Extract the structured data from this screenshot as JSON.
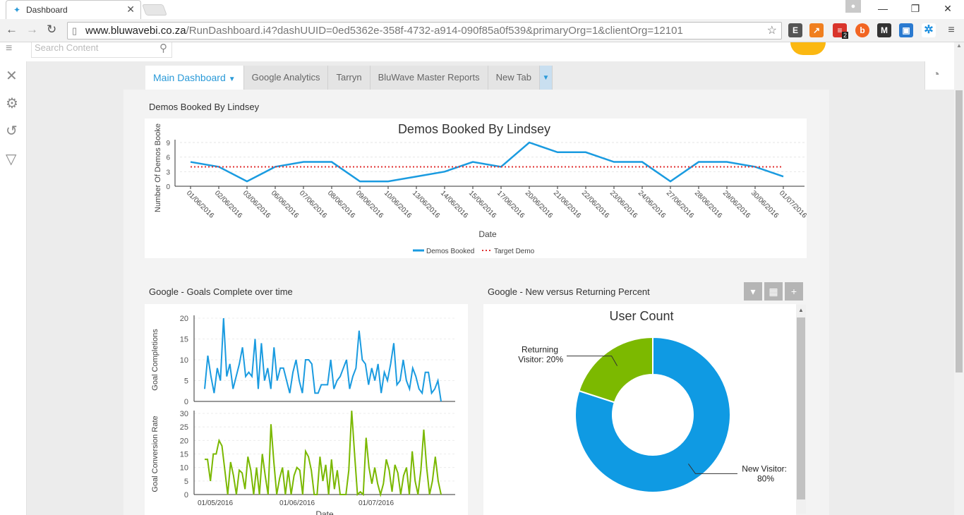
{
  "browser": {
    "tab_title": "Dashboard",
    "url_host": "www.bluwavebi.co.za",
    "url_rest": "/RunDashboard.i4?dashUUID=0ed5362e-358f-4732-a914-090f85a0f539&primaryOrg=1&clientOrg=12101",
    "ext_badge": "2"
  },
  "app": {
    "search_placeholder": "Search Content",
    "dash_tabs": [
      "Main Dashboard",
      "Google Analytics",
      "Tarryn",
      "BluWave Master Reports",
      "New Tab"
    ]
  },
  "widgets": {
    "demos_title": "Demos Booked By Lindsey",
    "goals_title": "Google - Goals Complete over time",
    "nvr_title": "Google - New versus Returning Percent"
  },
  "chart_data": [
    {
      "type": "line",
      "title": "Demos Booked By Lindsey",
      "xlabel": "Date",
      "ylabel": "Number Of Demos Booke",
      "ylim": [
        0,
        9
      ],
      "yticks": [
        0,
        3,
        6,
        9
      ],
      "categories": [
        "01/06/2016",
        "02/06/2016",
        "03/06/2016",
        "06/06/2016",
        "07/06/2016",
        "08/06/2016",
        "09/06/2016",
        "10/06/2016",
        "13/06/2016",
        "14/06/2016",
        "15/06/2016",
        "17/06/2016",
        "20/06/2016",
        "21/06/2016",
        "22/06/2016",
        "23/06/2016",
        "24/06/2016",
        "27/06/2016",
        "28/06/2016",
        "29/06/2016",
        "30/06/2016",
        "01/07/2016"
      ],
      "series": [
        {
          "name": "Demos Booked",
          "color": "#1a9be0",
          "values": [
            5,
            4,
            1,
            4,
            5,
            5,
            1,
            1,
            2,
            3,
            5,
            4,
            9,
            7,
            7,
            5,
            5,
            1,
            5,
            5,
            4,
            2
          ]
        },
        {
          "name": "Target Demo",
          "color": "#e03030",
          "style": "dotted",
          "values": [
            4,
            4,
            4,
            4,
            4,
            4,
            4,
            4,
            4,
            4,
            4,
            4,
            4,
            4,
            4,
            4,
            4,
            4,
            4,
            4,
            4,
            4
          ]
        }
      ],
      "legend": "bottom"
    },
    {
      "type": "line",
      "ylabel": "Goal Completions",
      "ylim": [
        0,
        20
      ],
      "yticks": [
        0,
        5,
        10,
        15,
        20
      ],
      "color": "#1a9be0",
      "values": [
        3,
        11,
        6,
        2,
        8,
        5,
        20,
        6,
        9,
        3,
        6,
        9,
        13,
        6,
        7,
        6,
        15,
        3,
        14,
        5,
        8,
        3,
        13,
        5,
        8,
        8,
        5,
        2,
        7,
        10,
        5,
        2,
        10,
        10,
        9,
        2,
        2,
        4,
        4,
        4,
        10,
        3,
        5,
        6,
        8,
        10,
        3,
        6,
        8,
        17,
        10,
        9,
        4,
        8,
        5,
        9,
        2,
        7,
        5,
        9,
        14,
        4,
        5,
        10,
        5,
        3,
        8,
        6,
        3,
        2,
        7,
        7,
        2,
        3,
        5,
        0
      ],
      "xticks": [
        "01/05/2016",
        "01/06/2016",
        "01/07/2016"
      ]
    },
    {
      "type": "line",
      "ylabel": "Goal Conversion Rate",
      "xlabel": "Date",
      "ylim": [
        0,
        30
      ],
      "yticks": [
        0,
        5,
        10,
        15,
        20,
        25,
        30
      ],
      "color": "#7ab800",
      "values": [
        13,
        13,
        5,
        15,
        15,
        20,
        18,
        9,
        0,
        12,
        7,
        0,
        9,
        8,
        2,
        14,
        9,
        0,
        10,
        0,
        15,
        7,
        0,
        26,
        12,
        0,
        6,
        10,
        0,
        9,
        0,
        7,
        10,
        9,
        0,
        16,
        14,
        9,
        0,
        0,
        14,
        5,
        11,
        0,
        13,
        2,
        9,
        0,
        0,
        0,
        9,
        31,
        15,
        0,
        1,
        0,
        21,
        10,
        4,
        10,
        4,
        0,
        4,
        13,
        9,
        1,
        11,
        8,
        0,
        7,
        10,
        0,
        16,
        5,
        0,
        9,
        24,
        10,
        0,
        5,
        14,
        5,
        0
      ],
      "xticks": [
        "01/05/2016",
        "01/06/2016",
        "01/07/2016"
      ]
    },
    {
      "type": "pie",
      "title": "User Count",
      "slices": [
        {
          "label": "New Visitor",
          "label_line2": "80%",
          "value": 80,
          "color": "#0f9ae3"
        },
        {
          "label": "Returning",
          "label_line2": "Visitor: 20%",
          "value": 20,
          "color": "#7cb900"
        }
      ]
    }
  ]
}
